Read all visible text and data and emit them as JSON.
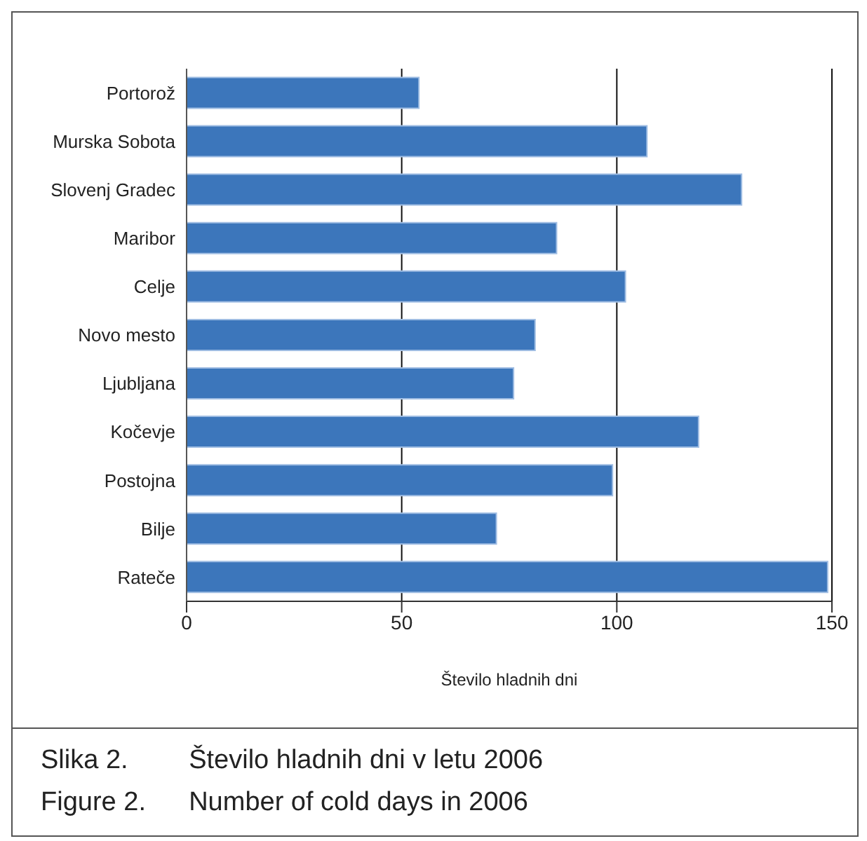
{
  "chart_data": {
    "type": "bar",
    "orientation": "horizontal",
    "xlabel": "Število hladnih dni",
    "categories": [
      "Portorož",
      "Murska Sobota",
      "Slovenj Gradec",
      "Maribor",
      "Celje",
      "Novo mesto",
      "Ljubljana",
      "Kočevje",
      "Postojna",
      "Bilje",
      "Rateče"
    ],
    "values": [
      54,
      107,
      129,
      86,
      102,
      81,
      76,
      119,
      99,
      72,
      149
    ],
    "color": "#3c76bb",
    "xlim": [
      0,
      150
    ],
    "xticks": [
      0,
      50,
      100,
      150
    ],
    "grid": "x",
    "annotations": [
      "Slika 2.\tŠtevilo hladnih dni v letu 2006",
      "Figure 2.\tNumber of cold days in 2006"
    ]
  }
}
